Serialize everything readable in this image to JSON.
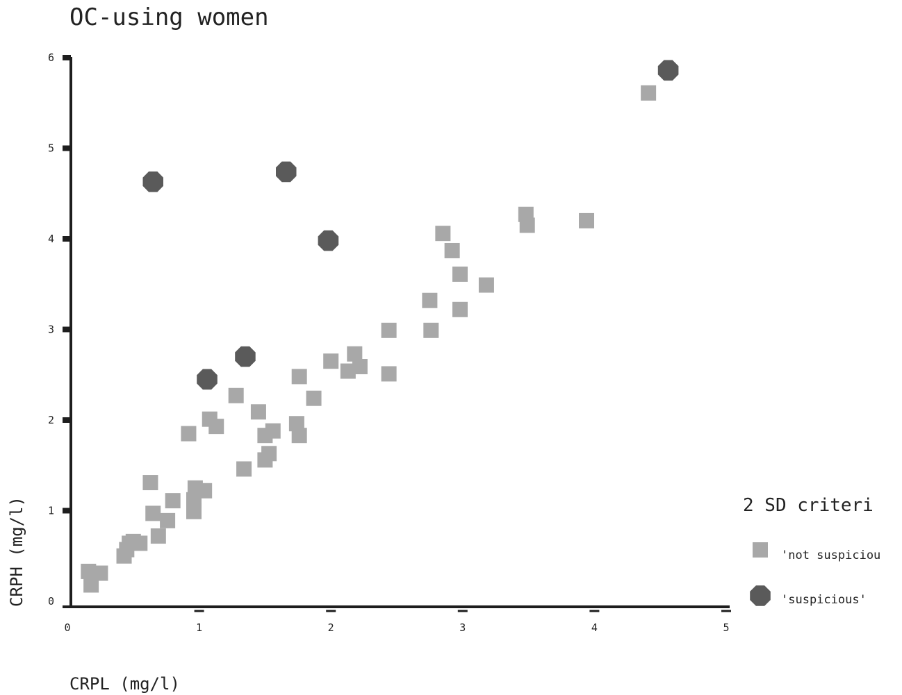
{
  "chart_data": {
    "type": "scatter",
    "title": "OC-using women",
    "xlabel": "CRPL (mg/l)",
    "ylabel": "CRPH (mg/l)",
    "xlim": [
      0,
      5
    ],
    "ylim": [
      0,
      6
    ],
    "xticks": [
      "0",
      "1",
      "2",
      "3",
      "4",
      "5"
    ],
    "yticks": [
      "0",
      "1",
      "2",
      "3",
      "4",
      "5",
      "6"
    ],
    "grid": false,
    "legend": {
      "title": "2 SD criteri",
      "placement": "right",
      "entries": [
        "'not suspiciou",
        "'suspicious'"
      ]
    },
    "colors": {
      "not_suspicious": "#a8a8a8",
      "suspicious": "#5a5a5a",
      "axis": "#1e1e1e"
    },
    "series": [
      {
        "name": "'not suspiciou",
        "marker": "square",
        "points": [
          [
            0.16,
            0.33
          ],
          [
            0.18,
            0.18
          ],
          [
            0.25,
            0.31
          ],
          [
            0.43,
            0.5
          ],
          [
            0.45,
            0.57
          ],
          [
            0.47,
            0.64
          ],
          [
            0.5,
            0.66
          ],
          [
            0.55,
            0.64
          ],
          [
            0.63,
            1.31
          ],
          [
            0.65,
            0.97
          ],
          [
            0.69,
            0.72
          ],
          [
            0.76,
            0.89
          ],
          [
            0.8,
            1.11
          ],
          [
            0.92,
            1.85
          ],
          [
            0.96,
            0.99
          ],
          [
            0.96,
            1.12
          ],
          [
            0.97,
            1.25
          ],
          [
            1.04,
            1.22
          ],
          [
            1.08,
            2.01
          ],
          [
            1.13,
            1.93
          ],
          [
            1.28,
            2.27
          ],
          [
            1.34,
            1.46
          ],
          [
            1.45,
            2.09
          ],
          [
            1.5,
            1.56
          ],
          [
            1.5,
            1.83
          ],
          [
            1.53,
            1.63
          ],
          [
            1.56,
            1.88
          ],
          [
            1.74,
            1.96
          ],
          [
            1.76,
            1.83
          ],
          [
            1.76,
            2.48
          ],
          [
            1.87,
            2.24
          ],
          [
            2.0,
            2.65
          ],
          [
            2.13,
            2.54
          ],
          [
            2.18,
            2.73
          ],
          [
            2.22,
            2.59
          ],
          [
            2.44,
            2.99
          ],
          [
            2.44,
            2.51
          ],
          [
            2.75,
            3.32
          ],
          [
            2.76,
            2.99
          ],
          [
            2.85,
            4.06
          ],
          [
            2.92,
            3.87
          ],
          [
            2.98,
            3.61
          ],
          [
            2.98,
            3.22
          ],
          [
            3.18,
            3.49
          ],
          [
            3.48,
            4.27
          ],
          [
            3.49,
            4.15
          ],
          [
            3.94,
            4.2
          ],
          [
            4.41,
            5.61
          ]
        ]
      },
      {
        "name": "'suspicious'",
        "marker": "octagon",
        "points": [
          [
            0.65,
            4.63
          ],
          [
            1.06,
            2.45
          ],
          [
            1.35,
            2.7
          ],
          [
            1.66,
            4.74
          ],
          [
            1.98,
            3.98
          ],
          [
            4.56,
            5.86
          ]
        ]
      }
    ]
  }
}
